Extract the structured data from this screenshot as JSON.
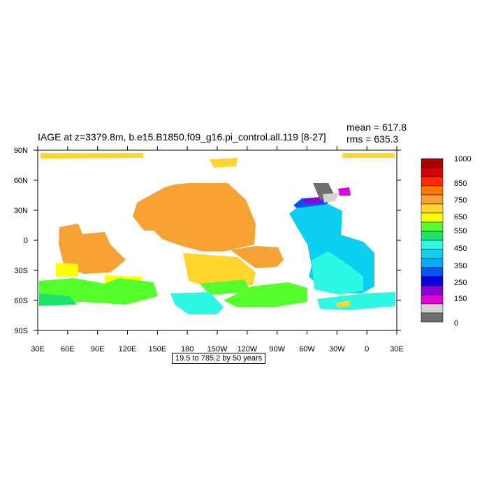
{
  "title": "IAGE at z=3379.8m, b.e15.B1850.f09_g16.pi_control.all.119 [8-27]",
  "stats": {
    "mean": "mean = 617.8",
    "rms": "rms = 635.3"
  },
  "range_note": "19.5 to 785.2 by 50 years",
  "axes": {
    "x_ticks": [
      "30E",
      "60E",
      "90E",
      "120E",
      "150E",
      "180",
      "150W",
      "120W",
      "90W",
      "60W",
      "30W",
      "0",
      "30E"
    ],
    "y_ticks": [
      "90N",
      "60N",
      "30N",
      "0",
      "30S",
      "60S",
      "90S"
    ]
  },
  "colorbar": {
    "labels": [
      "1000",
      "850",
      "750",
      "650",
      "550",
      "450",
      "350",
      "250",
      "150",
      "0"
    ],
    "colors": [
      "#a80000",
      "#d80000",
      "#ff2a00",
      "#ff7800",
      "#f7a234",
      "#ffd52e",
      "#ffff00",
      "#55ff2b",
      "#1ee36b",
      "#2ef7e4",
      "#0ecff0",
      "#03aaf5",
      "#0655f0",
      "#0a00e6",
      "#8a00d6",
      "#e100de",
      "#d3d3d3",
      "#6e6e6e"
    ]
  },
  "map_colors": {
    "orange": "#f7a234",
    "light_orange": "#ffd52e",
    "yellow": "#ffff00",
    "green": "#55ff2b",
    "aqua_green": "#1ee36b",
    "cyan": "#2ef7e4",
    "light_blue": "#0ecff0",
    "blue": "#0655f0",
    "purple": "#8a00d6",
    "magenta": "#e100de",
    "grey": "#6e6e6e",
    "light_grey": "#d3d3d3"
  }
}
